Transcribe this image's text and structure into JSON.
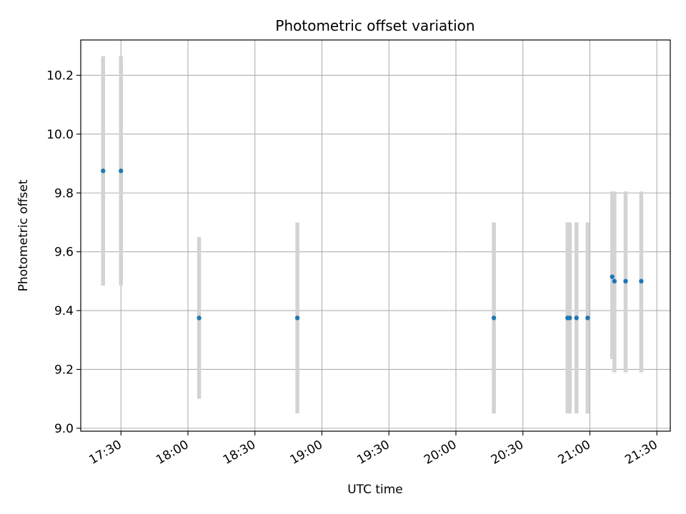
{
  "chart_data": {
    "type": "scatter",
    "title": "Photometric offset variation",
    "xlabel": "UTC time",
    "ylabel": "Photometric offset",
    "xlim": [
      "17:12",
      "21:36"
    ],
    "ylim": [
      8.99,
      10.32
    ],
    "x_ticks": [
      "17:30",
      "18:00",
      "18:30",
      "19:00",
      "19:30",
      "20:00",
      "20:30",
      "21:00",
      "21:30"
    ],
    "y_ticks": [
      "9.0",
      "9.2",
      "9.4",
      "9.6",
      "9.8",
      "10.0",
      "10.2"
    ],
    "grid": true,
    "colors": {
      "point": "#1f77b4",
      "errorbar": "#d3d3d3",
      "grid": "#b0b0b0"
    },
    "series": [
      {
        "points": [
          {
            "x": "17:22",
            "y": 9.875,
            "low": 9.485,
            "high": 10.265
          },
          {
            "x": "17:30",
            "y": 9.875,
            "low": 9.485,
            "high": 10.265
          },
          {
            "x": "18:05",
            "y": 9.375,
            "low": 9.1,
            "high": 9.65
          },
          {
            "x": "18:49",
            "y": 9.375,
            "low": 9.05,
            "high": 9.7
          },
          {
            "x": "20:17",
            "y": 9.375,
            "low": 9.05,
            "high": 9.7
          },
          {
            "x": "20:50",
            "y": 9.375,
            "low": 9.05,
            "high": 9.7
          },
          {
            "x": "20:51",
            "y": 9.375,
            "low": 9.05,
            "high": 9.7
          },
          {
            "x": "20:54",
            "y": 9.375,
            "low": 9.05,
            "high": 9.7
          },
          {
            "x": "20:59",
            "y": 9.375,
            "low": 9.05,
            "high": 9.7
          },
          {
            "x": "21:10",
            "y": 9.515,
            "low": 9.235,
            "high": 9.805
          },
          {
            "x": "21:11",
            "y": 9.5,
            "low": 9.19,
            "high": 9.805
          },
          {
            "x": "21:16",
            "y": 9.5,
            "low": 9.19,
            "high": 9.805
          },
          {
            "x": "21:23",
            "y": 9.5,
            "low": 9.19,
            "high": 9.805
          }
        ]
      }
    ]
  }
}
